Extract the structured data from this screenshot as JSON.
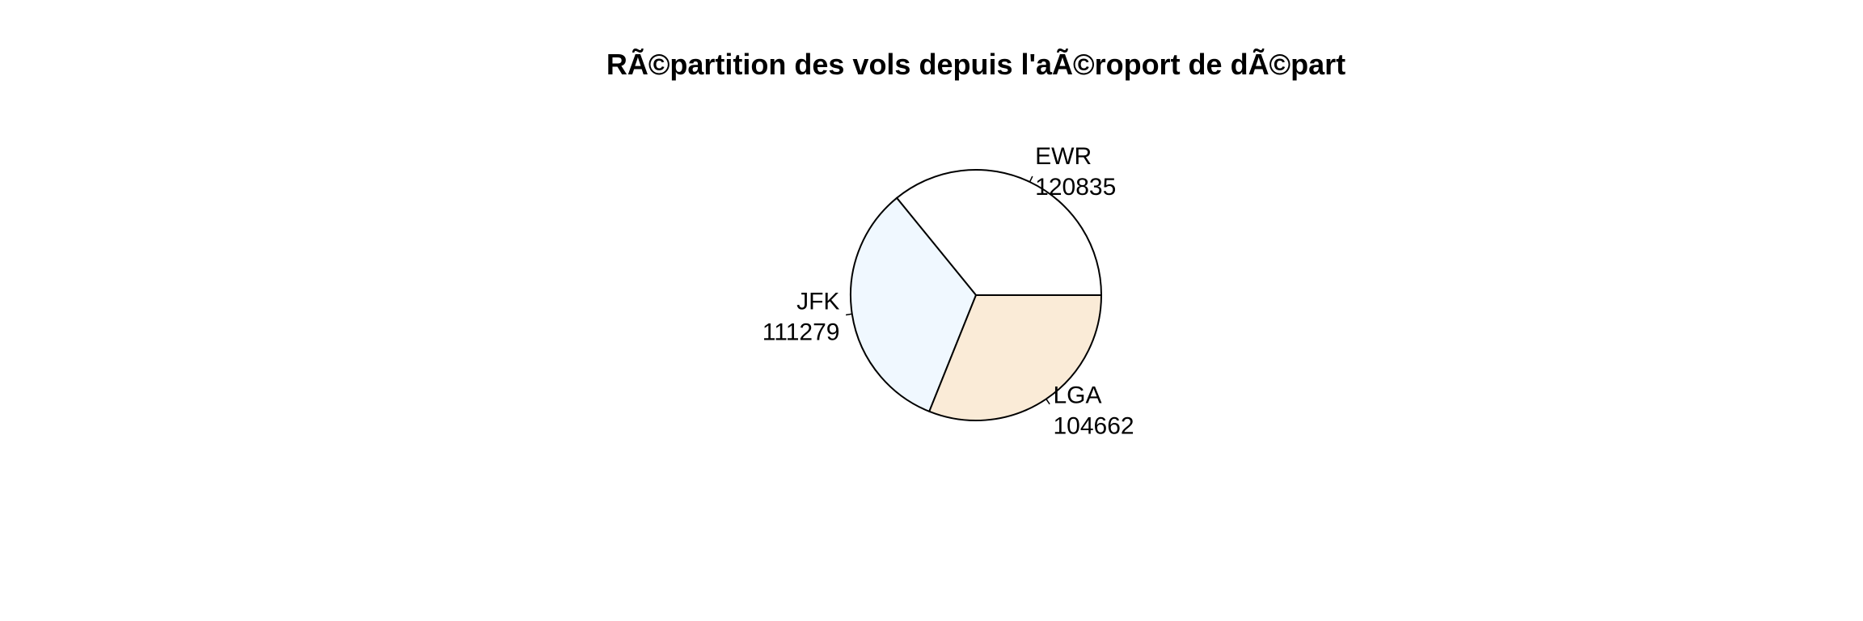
{
  "chart_data": {
    "type": "pie",
    "title": "RÃ©partition des vols depuis l'aÃ©roport de dÃ©part",
    "slices": [
      {
        "label": "EWR",
        "value": 120835,
        "color": "#ffffff"
      },
      {
        "label": "JFK",
        "value": 111279,
        "color": "#f0f8ff"
      },
      {
        "label": "LGA",
        "value": 104662,
        "color": "#faebd7"
      }
    ],
    "start_angle_deg": 0,
    "direction": "counterclockwise",
    "border_color": "#000000",
    "legend": "none"
  }
}
